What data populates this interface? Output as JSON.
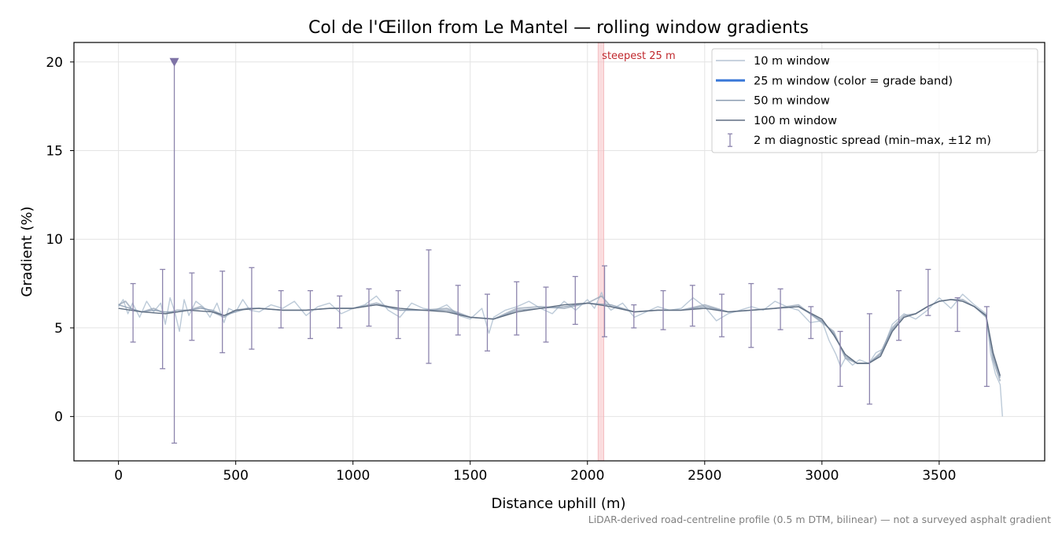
{
  "chart_data": {
    "type": "line",
    "title": "Col de l'Œillon from Le Mantel — rolling window gradients",
    "xlabel": "Distance uphill (m)",
    "ylabel": "Gradient (%)",
    "xlim": [
      -190,
      3950
    ],
    "ylim": [
      -2.5,
      21.1
    ],
    "xticks": [
      0,
      500,
      1000,
      1500,
      2000,
      2500,
      3000,
      3500
    ],
    "yticks": [
      0,
      5,
      10,
      15,
      20
    ],
    "grid": true,
    "legend_position": "top-right",
    "footnote": "LiDAR-derived road-centreline profile (0.5 m DTM, bilinear) — not a surveyed asphalt gradient",
    "annotation": {
      "text": "steepest 25 m",
      "x_range": [
        2045,
        2070
      ]
    },
    "series": [
      {
        "name": "10 m window",
        "color": "#b5c4d4",
        "x": [
          0,
          20,
          40,
          60,
          90,
          120,
          150,
          180,
          200,
          220,
          240,
          260,
          280,
          300,
          330,
          360,
          390,
          420,
          450,
          470,
          500,
          530,
          560,
          600,
          650,
          700,
          750,
          800,
          850,
          900,
          950,
          1000,
          1050,
          1100,
          1150,
          1200,
          1250,
          1300,
          1350,
          1400,
          1450,
          1500,
          1550,
          1580,
          1600,
          1650,
          1700,
          1750,
          1800,
          1850,
          1900,
          1950,
          2000,
          2030,
          2060,
          2080,
          2100,
          2150,
          2200,
          2250,
          2300,
          2350,
          2400,
          2450,
          2500,
          2550,
          2600,
          2650,
          2700,
          2750,
          2800,
          2850,
          2900,
          2950,
          3000,
          3030,
          3060,
          3080,
          3100,
          3130,
          3160,
          3200,
          3230,
          3260,
          3300,
          3350,
          3400,
          3450,
          3500,
          3550,
          3600,
          3650,
          3700,
          3720,
          3740,
          3760,
          3770
        ],
        "values": [
          6.2,
          6.6,
          5.8,
          6.4,
          5.6,
          6.5,
          5.9,
          6.4,
          5.2,
          6.7,
          5.9,
          4.8,
          6.6,
          5.7,
          6.5,
          6.2,
          5.6,
          6.4,
          5.3,
          6.1,
          5.9,
          6.6,
          6.0,
          5.9,
          6.3,
          6.1,
          6.5,
          5.7,
          6.2,
          6.4,
          5.8,
          6.1,
          6.3,
          6.8,
          6.0,
          5.6,
          6.4,
          6.1,
          6.0,
          6.3,
          5.7,
          5.5,
          6.1,
          4.7,
          5.6,
          6.0,
          6.2,
          6.5,
          6.1,
          5.8,
          6.5,
          6.0,
          6.6,
          6.1,
          7.0,
          6.3,
          6.0,
          6.4,
          5.6,
          5.9,
          6.2,
          6.0,
          6.1,
          6.7,
          6.2,
          5.4,
          5.8,
          6.0,
          6.2,
          6.0,
          6.5,
          6.2,
          6.0,
          5.3,
          5.4,
          4.3,
          3.5,
          2.8,
          3.3,
          2.9,
          3.2,
          3.0,
          3.6,
          3.8,
          5.2,
          5.8,
          5.5,
          6.0,
          6.7,
          6.1,
          6.9,
          6.3,
          5.8,
          3.5,
          2.4,
          1.8,
          0.0
        ]
      },
      {
        "name": "25 m window (color = grade band)",
        "color": "#3a78d8",
        "x": [
          0,
          30,
          60,
          100,
          150,
          200,
          250,
          300,
          350,
          400,
          450,
          500,
          550,
          600,
          700,
          800,
          900,
          1000,
          1100,
          1200,
          1300,
          1400,
          1500,
          1600,
          1700,
          1800,
          1900,
          2000,
          2060,
          2100,
          2200,
          2300,
          2400,
          2500,
          2600,
          2700,
          2800,
          2900,
          3000,
          3050,
          3100,
          3150,
          3200,
          3250,
          3300,
          3350,
          3400,
          3450,
          3500,
          3550,
          3600,
          3650,
          3700,
          3730,
          3760
        ],
        "values": [
          6.3,
          6.5,
          6.0,
          5.9,
          6.1,
          5.8,
          6.0,
          6.0,
          6.2,
          5.9,
          5.6,
          6.0,
          6.1,
          6.1,
          6.0,
          6.0,
          6.1,
          6.1,
          6.4,
          6.0,
          6.0,
          6.1,
          5.6,
          5.5,
          6.1,
          6.2,
          6.1,
          6.4,
          6.8,
          6.2,
          5.9,
          6.0,
          6.0,
          6.3,
          5.9,
          6.0,
          6.1,
          6.3,
          5.3,
          4.8,
          3.3,
          3.0,
          3.0,
          3.6,
          5.0,
          5.7,
          5.8,
          6.2,
          6.5,
          6.6,
          6.6,
          6.2,
          5.7,
          3.2,
          2.0
        ]
      },
      {
        "name": "50 m window",
        "color": "#8a9bb0",
        "x": [
          0,
          50,
          100,
          150,
          200,
          250,
          300,
          350,
          400,
          450,
          500,
          550,
          600,
          700,
          800,
          900,
          1000,
          1100,
          1200,
          1300,
          1400,
          1500,
          1600,
          1700,
          1800,
          1900,
          2000,
          2100,
          2200,
          2300,
          2400,
          2500,
          2600,
          2700,
          2800,
          2900,
          3000,
          3050,
          3100,
          3150,
          3200,
          3250,
          3300,
          3350,
          3400,
          3450,
          3500,
          3550,
          3600,
          3650,
          3700,
          3730,
          3760
        ],
        "values": [
          6.3,
          6.1,
          5.9,
          6.0,
          5.9,
          5.9,
          6.0,
          6.1,
          6.0,
          5.7,
          5.9,
          6.1,
          6.1,
          6.0,
          6.0,
          6.1,
          6.1,
          6.3,
          6.0,
          6.0,
          6.0,
          5.6,
          5.5,
          6.0,
          6.1,
          6.2,
          6.4,
          6.3,
          5.9,
          6.0,
          6.0,
          6.2,
          5.9,
          6.0,
          6.1,
          6.2,
          5.4,
          4.7,
          3.4,
          3.0,
          3.0,
          3.5,
          4.9,
          5.6,
          5.8,
          6.2,
          6.5,
          6.6,
          6.5,
          6.2,
          5.6,
          3.4,
          2.2
        ]
      },
      {
        "name": "100 m window",
        "color": "#5f6e82",
        "x": [
          0,
          100,
          200,
          300,
          400,
          450,
          500,
          600,
          700,
          800,
          900,
          1000,
          1100,
          1200,
          1300,
          1400,
          1500,
          1600,
          1700,
          1800,
          1900,
          2000,
          2100,
          2200,
          2300,
          2400,
          2500,
          2600,
          2700,
          2800,
          2900,
          3000,
          3050,
          3100,
          3150,
          3200,
          3250,
          3300,
          3350,
          3400,
          3450,
          3500,
          3550,
          3600,
          3650,
          3700,
          3730,
          3760
        ],
        "values": [
          6.1,
          5.9,
          5.8,
          6.0,
          5.9,
          5.7,
          6.0,
          6.1,
          6.0,
          6.0,
          6.1,
          6.1,
          6.3,
          6.1,
          6.0,
          5.9,
          5.6,
          5.5,
          5.9,
          6.1,
          6.3,
          6.4,
          6.2,
          5.9,
          6.0,
          6.0,
          6.1,
          5.9,
          6.0,
          6.1,
          6.2,
          5.5,
          4.6,
          3.5,
          3.0,
          3.0,
          3.4,
          4.8,
          5.6,
          5.8,
          6.2,
          6.5,
          6.6,
          6.5,
          6.2,
          5.7,
          3.6,
          2.3
        ]
      }
    ],
    "error_bars": {
      "name": "2 m diagnostic spread (min–max, ±12 m)",
      "color": "#8c84ad",
      "points": [
        {
          "x": 62,
          "min": 4.2,
          "max": 7.5
        },
        {
          "x": 188,
          "min": 2.7,
          "max": 8.3
        },
        {
          "x": 238,
          "min": -1.5,
          "max": 20.0
        },
        {
          "x": 313,
          "min": 4.3,
          "max": 8.1
        },
        {
          "x": 443,
          "min": 3.6,
          "max": 8.2
        },
        {
          "x": 568,
          "min": 3.8,
          "max": 8.4
        },
        {
          "x": 693,
          "min": 5.0,
          "max": 7.1
        },
        {
          "x": 818,
          "min": 4.4,
          "max": 7.1
        },
        {
          "x": 943,
          "min": 5.0,
          "max": 6.8
        },
        {
          "x": 1068,
          "min": 5.1,
          "max": 7.2
        },
        {
          "x": 1193,
          "min": 4.4,
          "max": 7.1
        },
        {
          "x": 1323,
          "min": 3.0,
          "max": 9.4
        },
        {
          "x": 1448,
          "min": 4.6,
          "max": 7.4
        },
        {
          "x": 1573,
          "min": 3.7,
          "max": 6.9
        },
        {
          "x": 1698,
          "min": 4.6,
          "max": 7.6
        },
        {
          "x": 1823,
          "min": 4.2,
          "max": 7.3
        },
        {
          "x": 1948,
          "min": 5.2,
          "max": 7.9
        },
        {
          "x": 2073,
          "min": 4.5,
          "max": 8.5
        },
        {
          "x": 2198,
          "min": 5.0,
          "max": 6.3
        },
        {
          "x": 2323,
          "min": 4.9,
          "max": 7.1
        },
        {
          "x": 2448,
          "min": 5.1,
          "max": 7.4
        },
        {
          "x": 2573,
          "min": 4.5,
          "max": 6.9
        },
        {
          "x": 2698,
          "min": 3.9,
          "max": 7.5
        },
        {
          "x": 2823,
          "min": 4.9,
          "max": 7.2
        },
        {
          "x": 2953,
          "min": 4.4,
          "max": 6.2
        },
        {
          "x": 3078,
          "min": 1.7,
          "max": 4.8
        },
        {
          "x": 3203,
          "min": 0.7,
          "max": 5.8
        },
        {
          "x": 3328,
          "min": 4.3,
          "max": 7.1
        },
        {
          "x": 3453,
          "min": 5.7,
          "max": 8.3
        },
        {
          "x": 3578,
          "min": 4.8,
          "max": 6.7
        },
        {
          "x": 3703,
          "min": 1.7,
          "max": 6.2
        }
      ]
    }
  }
}
